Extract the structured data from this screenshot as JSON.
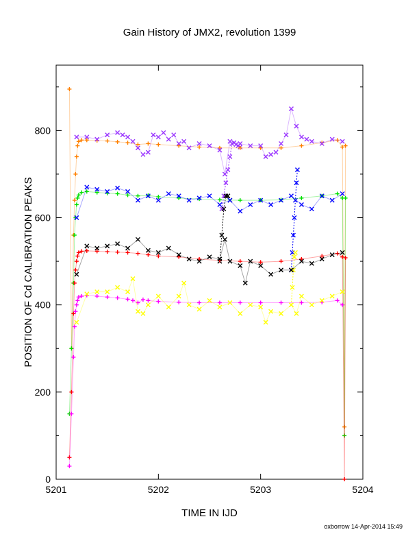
{
  "chart_data": {
    "type": "scatter",
    "title": "Gain History of JMX2, revolution 1399",
    "xlabel": "TIME IN IJD",
    "ylabel": "POSITION OF Cd CALIBRATION PEAKS",
    "xlim": [
      5201,
      5204
    ],
    "ylim": [
      0,
      950
    ],
    "x_ticks": [
      5201,
      5202,
      5203,
      5204
    ],
    "y_ticks": [
      0,
      200,
      400,
      600,
      800
    ],
    "x_tick_labels": [
      "5201",
      "5202",
      "5203",
      "5204"
    ],
    "y_tick_labels": [
      "0",
      "200",
      "400",
      "600",
      "800"
    ],
    "grid": false,
    "legend": "none",
    "footer": "oxborrow 14-Apr-2014 15:49",
    "series": [
      {
        "color": "#ff8000",
        "marker": "plus",
        "x": [
          5201.13,
          5201.15,
          5201.17,
          5201.18,
          5201.19,
          5201.2,
          5201.21,
          5201.22,
          5201.25,
          5201.3,
          5201.4,
          5201.5,
          5201.6,
          5201.7,
          5201.8,
          5201.9,
          5202.0,
          5202.2,
          5202.4,
          5202.6,
          5202.8,
          5203.0,
          5203.2,
          5203.4,
          5203.6,
          5203.75,
          5203.8,
          5203.82,
          5203.83
        ],
        "y": [
          895,
          300,
          560,
          640,
          700,
          740,
          765,
          775,
          778,
          778,
          777,
          776,
          774,
          772,
          768,
          770,
          768,
          765,
          762,
          760,
          760,
          760,
          760,
          765,
          772,
          778,
          762,
          120,
          765
        ]
      },
      {
        "color": "#9933ff",
        "marker": "cross",
        "x": [
          5201.2,
          5201.3,
          5201.4,
          5201.5,
          5201.6,
          5201.65,
          5201.7,
          5201.75,
          5201.8,
          5201.85,
          5201.9,
          5201.95,
          5202.0,
          5202.05,
          5202.1,
          5202.15,
          5202.2,
          5202.25,
          5202.3,
          5202.4,
          5202.5,
          5202.6,
          5202.65,
          5202.7,
          5202.8,
          5202.9,
          5203.0,
          5203.05,
          5203.1,
          5203.15,
          5203.2,
          5203.25,
          5203.3,
          5203.35,
          5203.4,
          5203.45,
          5203.5,
          5203.6,
          5203.7,
          5203.8
        ],
        "y": [
          785,
          785,
          780,
          790,
          795,
          790,
          785,
          775,
          760,
          745,
          750,
          790,
          785,
          795,
          780,
          790,
          770,
          775,
          760,
          770,
          765,
          755,
          700,
          775,
          770,
          765,
          765,
          740,
          745,
          750,
          770,
          790,
          850,
          810,
          785,
          780,
          775,
          770,
          780,
          775
        ]
      },
      {
        "color": "#00e000",
        "marker": "plus",
        "x": [
          5201.13,
          5201.15,
          5201.17,
          5201.18,
          5201.19,
          5201.2,
          5201.21,
          5201.22,
          5201.25,
          5201.3,
          5201.4,
          5201.5,
          5201.6,
          5201.7,
          5201.8,
          5201.9,
          5202.0,
          5202.2,
          5202.4,
          5202.6,
          5202.8,
          5203.0,
          5203.2,
          5203.4,
          5203.6,
          5203.75,
          5203.8,
          5203.82,
          5203.83
        ],
        "y": [
          150,
          300,
          450,
          560,
          600,
          630,
          645,
          652,
          658,
          660,
          658,
          656,
          655,
          652,
          650,
          651,
          648,
          645,
          643,
          641,
          640,
          640,
          641,
          645,
          650,
          655,
          645,
          100,
          645
        ]
      },
      {
        "color": "#0000ff",
        "marker": "cross",
        "x": [
          5201.2,
          5201.3,
          5201.4,
          5201.5,
          5201.6,
          5201.7,
          5201.8,
          5201.9,
          5202.0,
          5202.1,
          5202.2,
          5202.3,
          5202.4,
          5202.5,
          5202.6,
          5202.7,
          5202.8,
          5202.9,
          5203.0,
          5203.1,
          5203.2,
          5203.3,
          5203.4,
          5203.5,
          5203.6,
          5203.7,
          5203.8
        ],
        "y": [
          600,
          670,
          665,
          660,
          668,
          660,
          640,
          650,
          640,
          655,
          650,
          640,
          645,
          650,
          630,
          640,
          615,
          630,
          640,
          630,
          640,
          650,
          630,
          620,
          650,
          640,
          655
        ]
      },
      {
        "color": "#ff0000",
        "marker": "plus",
        "x": [
          5201.13,
          5201.15,
          5201.17,
          5201.18,
          5201.19,
          5201.2,
          5201.21,
          5201.22,
          5201.25,
          5201.3,
          5201.4,
          5201.5,
          5201.6,
          5201.7,
          5201.8,
          5201.9,
          5202.0,
          5202.2,
          5202.4,
          5202.6,
          5202.8,
          5203.0,
          5203.2,
          5203.4,
          5203.6,
          5203.75,
          5203.8,
          5203.82,
          5203.83
        ],
        "y": [
          50,
          200,
          380,
          450,
          480,
          500,
          512,
          520,
          523,
          524,
          523,
          522,
          521,
          520,
          518,
          515,
          512,
          510,
          505,
          502,
          500,
          498,
          500,
          505,
          512,
          518,
          510,
          0,
          508
        ]
      },
      {
        "color": "#000000",
        "marker": "cross",
        "x": [
          5201.2,
          5201.3,
          5201.4,
          5201.5,
          5201.6,
          5201.7,
          5201.8,
          5201.9,
          5202.0,
          5202.1,
          5202.2,
          5202.3,
          5202.4,
          5202.5,
          5202.6,
          5202.65,
          5202.7,
          5202.8,
          5202.85,
          5202.9,
          5203.0,
          5203.1,
          5203.2,
          5203.3,
          5203.4,
          5203.5,
          5203.6,
          5203.7,
          5203.8
        ],
        "y": [
          470,
          535,
          530,
          535,
          540,
          530,
          550,
          525,
          520,
          530,
          515,
          505,
          500,
          510,
          505,
          550,
          500,
          490,
          450,
          500,
          490,
          470,
          480,
          480,
          500,
          495,
          505,
          515,
          520
        ]
      },
      {
        "color": "#ff00ff",
        "marker": "plus",
        "x": [
          5201.13,
          5201.15,
          5201.17,
          5201.18,
          5201.19,
          5201.2,
          5201.21,
          5201.22,
          5201.25,
          5201.3,
          5201.4,
          5201.5,
          5201.6,
          5201.7,
          5201.75,
          5201.8,
          5201.85,
          5201.9,
          5202.0,
          5202.2,
          5202.4,
          5202.6,
          5202.8,
          5203.0,
          5203.2,
          5203.4,
          5203.6,
          5203.75,
          5203.8
        ],
        "y": [
          30,
          150,
          280,
          350,
          385,
          400,
          410,
          418,
          420,
          422,
          420,
          418,
          416,
          413,
          410,
          405,
          412,
          410,
          408,
          406,
          405,
          405,
          405,
          405,
          405,
          405,
          406,
          410,
          400
        ]
      },
      {
        "color": "#ffff00",
        "marker": "cross",
        "x": [
          5201.2,
          5201.3,
          5201.4,
          5201.5,
          5201.6,
          5201.7,
          5201.75,
          5201.8,
          5201.85,
          5201.9,
          5202.0,
          5202.1,
          5202.2,
          5202.25,
          5202.3,
          5202.4,
          5202.5,
          5202.6,
          5202.7,
          5202.8,
          5202.9,
          5203.0,
          5203.05,
          5203.1,
          5203.2,
          5203.3,
          5203.35,
          5203.4,
          5203.5,
          5203.6,
          5203.7,
          5203.8
        ],
        "y": [
          360,
          425,
          430,
          430,
          440,
          430,
          460,
          385,
          380,
          400,
          420,
          395,
          420,
          450,
          400,
          390,
          410,
          395,
          405,
          380,
          400,
          395,
          360,
          385,
          380,
          400,
          380,
          420,
          400,
          410,
          420,
          430
        ]
      }
    ],
    "connector_streaks": [
      {
        "color": "#9933ff",
        "x": [
          5202.62,
          5202.64,
          5202.66,
          5202.68,
          5202.7,
          5202.72,
          5202.74,
          5202.76,
          5202.78,
          5202.8
        ],
        "y": [
          620,
          650,
          680,
          710,
          740,
          770,
          772,
          768,
          765,
          762
        ]
      },
      {
        "color": "#0000ff",
        "x": [
          5203.3,
          5203.31,
          5203.32,
          5203.33,
          5203.34,
          5203.35,
          5203.36
        ],
        "y": [
          480,
          520,
          560,
          600,
          640,
          680,
          710
        ]
      },
      {
        "color": "#000000",
        "x": [
          5202.6,
          5202.62,
          5202.64,
          5202.66,
          5202.68,
          5202.7
        ],
        "y": [
          500,
          560,
          620,
          650,
          650,
          640
        ]
      },
      {
        "color": "#ffff00",
        "x": [
          5203.3,
          5203.31,
          5203.32,
          5203.33,
          5203.34
        ],
        "y": [
          400,
          440,
          480,
          510,
          520
        ]
      }
    ]
  }
}
